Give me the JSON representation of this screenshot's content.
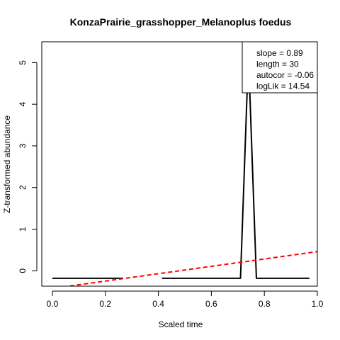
{
  "chart_data": {
    "type": "line",
    "title": "KonzaPrairie_grasshopper_Melanoplus foedus",
    "xlabel": "Scaled time",
    "ylabel": "Z-transformed abundance",
    "xlim": [
      -0.04,
      1.0
    ],
    "ylim": [
      -0.37,
      5.5
    ],
    "x_ticks": [
      "0.0",
      "0.2",
      "0.4",
      "0.6",
      "0.8",
      "1.0"
    ],
    "x_tick_values": [
      0.0,
      0.2,
      0.4,
      0.6,
      0.8,
      1.0
    ],
    "y_ticks": [
      "0",
      "1",
      "2",
      "3",
      "4",
      "5"
    ],
    "y_tick_values": [
      0,
      1,
      2,
      3,
      4,
      5
    ],
    "grid": false,
    "series": [
      {
        "color": "#000000",
        "style": "solid",
        "segments": [
          [
            [
              0.0,
              -0.18
            ],
            [
              0.267,
              -0.18
            ]
          ],
          [
            [
              0.414,
              -0.18
            ],
            [
              0.71,
              -0.18
            ],
            [
              0.74,
              5.2
            ],
            [
              0.77,
              -0.18
            ],
            [
              0.97,
              -0.18
            ]
          ]
        ]
      },
      {
        "color": "#ff0000",
        "style": "dashed",
        "segments": [
          [
            [
              -0.04,
              -0.46
            ],
            [
              1.0,
              0.46
            ]
          ]
        ]
      }
    ],
    "legend": {
      "position": "top-right",
      "lines": [
        "slope = 0.89",
        "length = 30",
        "autocor = -0.06",
        "logLik = 14.54"
      ]
    }
  }
}
